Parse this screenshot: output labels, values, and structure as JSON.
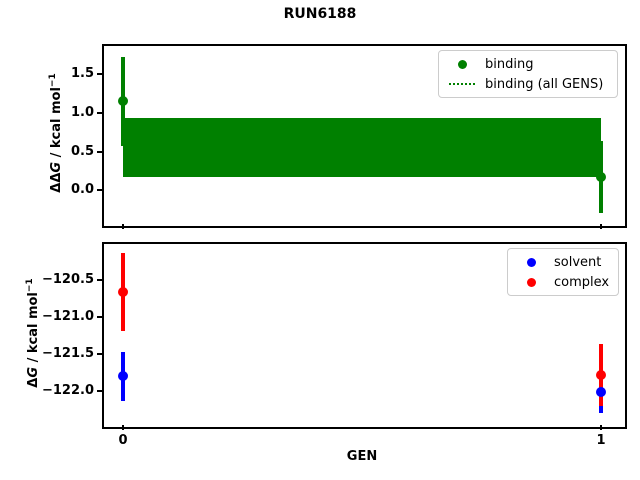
{
  "figure": {
    "title": "RUN6188"
  },
  "colors": {
    "binding": "#008000",
    "solvent": "#0000ff",
    "complex": "#ff0000",
    "spine": "#000000",
    "legend_border": "#cccccc"
  },
  "chart_data": [
    {
      "type": "scatter",
      "panel": "top",
      "title": "",
      "xlabel": "",
      "ylabel": "ΔΔG / kcal mol⁻¹",
      "ylabel_parts": {
        "prefix": "ΔΔ",
        "sym": "G",
        "unit": " / kcal mol",
        "sup": "−1"
      },
      "ylim": [
        -0.41,
        1.88
      ],
      "xlim": [
        -0.05,
        1.05
      ],
      "grid": false,
      "legend_position": "upper right",
      "yticks": [
        {
          "v": 1.5,
          "label": "1.5"
        },
        {
          "v": 1.0,
          "label": "1.0"
        },
        {
          "v": 0.5,
          "label": "0.5"
        },
        {
          "v": 0.0,
          "label": "0.0"
        }
      ],
      "xticks": [
        {
          "v": 0,
          "label": "0"
        },
        {
          "v": 1,
          "label": "1"
        }
      ],
      "series": [
        {
          "name": "binding",
          "color": "#008000",
          "marker": "circle",
          "x": [
            0,
            1
          ],
          "y": [
            1.15,
            0.17
          ],
          "yerr": [
            0.58,
            0.47
          ]
        }
      ],
      "band": {
        "name": "binding (all GENS)",
        "color": "#008000",
        "legend_style": "dotted-line",
        "x_from": 0,
        "x_to": 1,
        "lo": 0.17,
        "hi": 0.94
      }
    },
    {
      "type": "scatter",
      "panel": "bottom",
      "title": "",
      "xlabel": "GEN",
      "ylabel": "ΔG / kcal mol⁻¹",
      "ylabel_parts": {
        "prefix": "Δ",
        "sym": "G",
        "unit": " / kcal mol",
        "sup": "−1"
      },
      "ylim": [
        -122.43,
        -120.0
      ],
      "xlim": [
        -0.05,
        1.05
      ],
      "grid": false,
      "legend_position": "upper right",
      "yticks": [
        {
          "v": -120.5,
          "label": "−120.5"
        },
        {
          "v": -121.0,
          "label": "−121.0"
        },
        {
          "v": -121.5,
          "label": "−121.5"
        },
        {
          "v": -122.0,
          "label": "−122.0"
        }
      ],
      "xticks": [
        {
          "v": 0,
          "label": "0"
        },
        {
          "v": 1,
          "label": "1"
        }
      ],
      "series": [
        {
          "name": "solvent",
          "color": "#0000ff",
          "marker": "circle",
          "x": [
            0,
            1
          ],
          "y": [
            -121.8,
            -122.01
          ],
          "yerr": [
            0.33,
            0.29
          ]
        },
        {
          "name": "complex",
          "color": "#ff0000",
          "marker": "circle",
          "x": [
            0,
            1
          ],
          "y": [
            -120.66,
            -121.78
          ],
          "yerr": [
            0.53,
            0.42
          ]
        }
      ]
    }
  ]
}
